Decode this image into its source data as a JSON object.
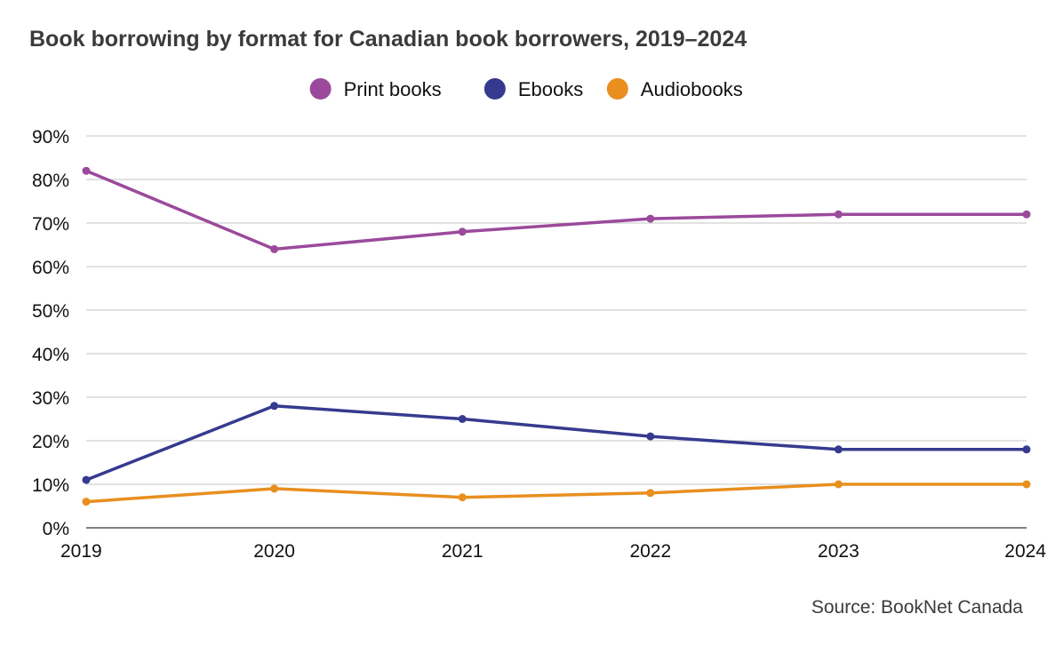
{
  "chart_data": {
    "type": "line",
    "title": "Book borrowing by format for Canadian book borrowers, 2019–2024",
    "source": "Source: BookNet Canada",
    "x": [
      "2019",
      "2020",
      "2021",
      "2022",
      "2023",
      "2024"
    ],
    "ylim": [
      0,
      90
    ],
    "yticks": [
      0,
      10,
      20,
      30,
      40,
      50,
      60,
      70,
      80,
      90
    ],
    "ytick_labels": [
      "0%",
      "10%",
      "20%",
      "30%",
      "40%",
      "50%",
      "60%",
      "70%",
      "80%",
      "90%"
    ],
    "grid": true,
    "legend_position": "top",
    "series": [
      {
        "name": "Print books",
        "color": "#9b4a9b",
        "values": [
          82,
          64,
          68,
          71,
          72,
          72
        ]
      },
      {
        "name": "Ebooks",
        "color": "#363a8f",
        "values": [
          11,
          28,
          25,
          21,
          18,
          18
        ]
      },
      {
        "name": "Audiobooks",
        "color": "#e88f1f",
        "values": [
          6,
          9,
          7,
          8,
          10,
          10
        ]
      }
    ]
  }
}
